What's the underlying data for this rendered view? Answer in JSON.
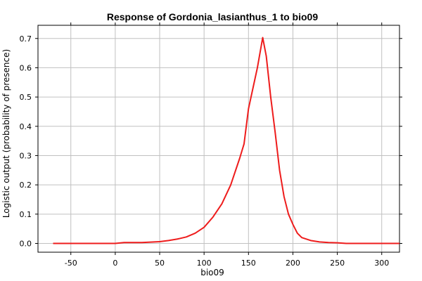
{
  "chart_data": {
    "type": "line",
    "title": "Response of Gordonia_lasianthus_1 to bio09",
    "xlabel": "bio09",
    "ylabel": "Logistic output (probability of presence)",
    "xlim": [
      -87,
      320
    ],
    "ylim": [
      -0.03,
      0.745
    ],
    "xticks": [
      -50,
      0,
      50,
      100,
      150,
      200,
      250,
      300
    ],
    "yticks": [
      0.0,
      0.1,
      0.2,
      0.3,
      0.4,
      0.5,
      0.6,
      0.7
    ],
    "ytick_labels": [
      "0.0",
      "0.1",
      "0.2",
      "0.3",
      "0.4",
      "0.5",
      "0.6",
      "0.7"
    ],
    "grid": true,
    "series": [
      {
        "color": "#ee1c1c",
        "x": [
          -70,
          -50,
          -20,
          0,
          10,
          30,
          50,
          60,
          70,
          80,
          90,
          100,
          110,
          120,
          130,
          140,
          145,
          150,
          155,
          160,
          166,
          170,
          175,
          180,
          185,
          190,
          195,
          200,
          205,
          210,
          220,
          230,
          240,
          250,
          260,
          280,
          300,
          320
        ],
        "y": [
          0.0,
          0.0,
          0.0,
          0.0,
          0.003,
          0.003,
          0.006,
          0.01,
          0.015,
          0.022,
          0.035,
          0.055,
          0.09,
          0.135,
          0.2,
          0.29,
          0.34,
          0.46,
          0.53,
          0.6,
          0.703,
          0.64,
          0.5,
          0.38,
          0.25,
          0.16,
          0.1,
          0.065,
          0.035,
          0.02,
          0.01,
          0.005,
          0.003,
          0.002,
          0.0,
          0.0,
          0.0,
          0.0
        ]
      }
    ]
  }
}
